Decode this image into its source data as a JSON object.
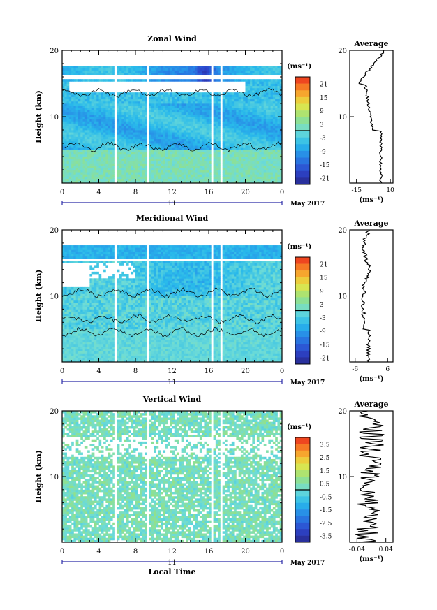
{
  "chart_data": [
    {
      "type": "heatmap",
      "title": "Zonal Wind",
      "ylabel": "Height (km)",
      "yticks": [
        "10",
        "20"
      ],
      "ylim": [
        0,
        20
      ],
      "xticks": [
        "0",
        "4",
        "8",
        "12",
        "16",
        "20",
        "0"
      ],
      "xlim": [
        0,
        24
      ],
      "date_label": "11",
      "month_label": "May 2017",
      "colorbar": {
        "unit": "(ms⁻¹)",
        "ticks": [
          "21",
          "15",
          "9",
          "3",
          "-3",
          "-9",
          "-15",
          "-21"
        ],
        "range": [
          -24,
          24
        ]
      },
      "average": {
        "title": "Average",
        "yticks": [
          "10",
          "20"
        ],
        "xticks": [
          "-15",
          "10"
        ],
        "xlim": [
          -20,
          12
        ],
        "xlabel": "(ms⁻¹)"
      }
    },
    {
      "type": "heatmap",
      "title": "Meridional Wind",
      "ylabel": "Height (km)",
      "yticks": [
        "10",
        "20"
      ],
      "ylim": [
        0,
        20
      ],
      "xticks": [
        "0",
        "4",
        "8",
        "12",
        "16",
        "20",
        "0"
      ],
      "xlim": [
        0,
        24
      ],
      "date_label": "11",
      "month_label": "May 2017",
      "colorbar": {
        "unit": "(ms⁻¹)",
        "ticks": [
          "21",
          "15",
          "9",
          "3",
          "-3",
          "-9",
          "-15",
          "-21"
        ],
        "range": [
          -24,
          24
        ]
      },
      "average": {
        "title": "Average",
        "yticks": [
          "10",
          "20"
        ],
        "xticks": [
          "-6",
          "6"
        ],
        "xlim": [
          -8,
          8
        ],
        "xlabel": "(ms⁻¹)"
      }
    },
    {
      "type": "heatmap",
      "title": "Vertical Wind",
      "ylabel": "Height (km)",
      "xlabel": "Local Time",
      "yticks": [
        "10",
        "20"
      ],
      "ylim": [
        0,
        20
      ],
      "xticks": [
        "0",
        "4",
        "8",
        "12",
        "16",
        "20",
        "0"
      ],
      "xlim": [
        0,
        24
      ],
      "date_label": "11",
      "month_label": "May 2017",
      "colorbar": {
        "unit": "(ms⁻¹)",
        "ticks": [
          "3.5",
          "2.5",
          "1.5",
          "0.5",
          "-0.5",
          "-1.5",
          "-2.5",
          "-3.5"
        ],
        "range": [
          -4,
          4
        ]
      },
      "average": {
        "title": "Average",
        "yticks": [
          "10",
          "20"
        ],
        "xticks": [
          "-0.04",
          "0.04"
        ],
        "xlim": [
          -0.06,
          0.06
        ],
        "xlabel": "(ms⁻¹)"
      }
    }
  ]
}
